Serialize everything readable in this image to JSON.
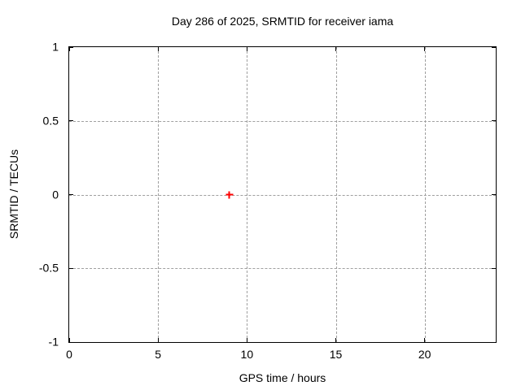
{
  "chart_data": {
    "type": "scatter",
    "title": "Day 286 of 2025, SRMTID for receiver iama",
    "xlabel": "GPS time / hours",
    "ylabel": "SRMTID / TECUs",
    "xlim": [
      0,
      24
    ],
    "ylim": [
      -1,
      1
    ],
    "xticks": [
      0,
      5,
      10,
      15,
      20
    ],
    "xtick_labels": [
      "0",
      "5",
      "10",
      "15",
      "20"
    ],
    "yticks": [
      1,
      0.5,
      0,
      -0.5,
      -1
    ],
    "ytick_labels": [
      "1",
      "0.5",
      "0",
      "-0.5",
      "-1"
    ],
    "grid": true,
    "legend_position": "none",
    "series": [
      {
        "marker": "plus",
        "color": "#ff0000",
        "points": [
          {
            "x": 9,
            "y": 0
          }
        ]
      }
    ],
    "colors": {
      "background": "#ffffff",
      "axis": "#000000",
      "text": "#000000",
      "grid": "#9f9f9f"
    }
  }
}
